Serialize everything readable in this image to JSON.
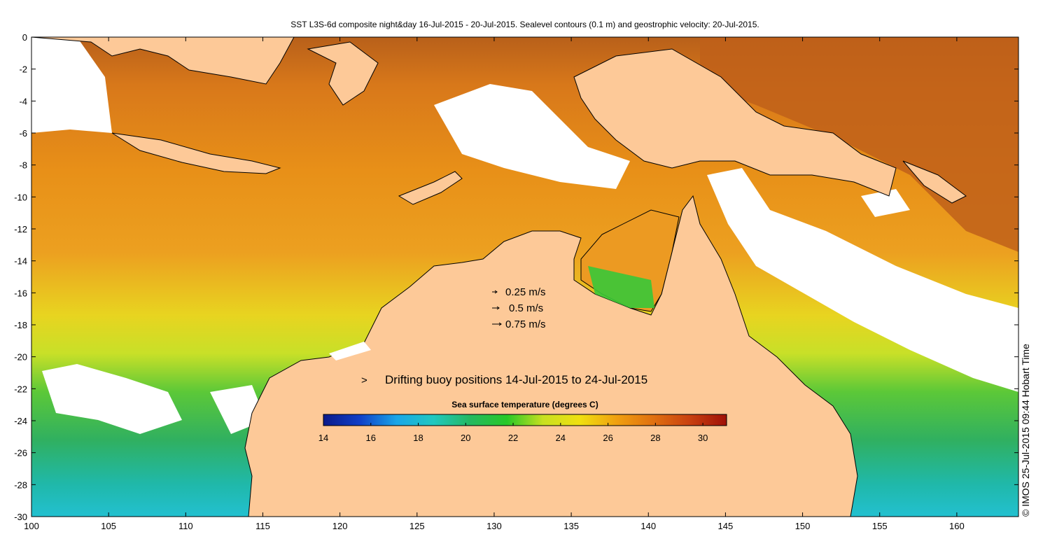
{
  "title": "SST L3S-6d composite night&day 16-Jul-2015 - 20-Jul-2015. Sealevel contours (0.1 m) and geostrophic velocity: 20-Jul-2015.",
  "axes": {
    "x_ticks": [
      "100",
      "105",
      "110",
      "115",
      "120",
      "125",
      "130",
      "135",
      "140",
      "145",
      "150",
      "155",
      "160"
    ],
    "x_values": [
      100,
      105,
      110,
      115,
      120,
      125,
      130,
      135,
      140,
      145,
      150,
      155,
      160
    ],
    "y_ticks": [
      "0",
      "-2",
      "-4",
      "-6",
      "-8",
      "-10",
      "-12",
      "-14",
      "-16",
      "-18",
      "-20",
      "-22",
      "-24",
      "-26",
      "-28",
      "-30"
    ],
    "y_values": [
      0,
      -2,
      -4,
      -6,
      -8,
      -10,
      -12,
      -14,
      -16,
      -18,
      -20,
      -22,
      -24,
      -26,
      -28,
      -30
    ],
    "xlim": [
      100,
      164
    ],
    "ylim": [
      -30,
      0
    ]
  },
  "velocity_legend": [
    {
      "label": "0.25 m/s",
      "speed": 0.25
    },
    {
      "label": "0.5 m/s",
      "speed": 0.5
    },
    {
      "label": "0.75 m/s",
      "speed": 0.75
    }
  ],
  "buoy_legend": {
    "marker": ">",
    "label": "Drifting buoy positions 14-Jul-2015 to 24-Jul-2015",
    "color": "#e040e0"
  },
  "colorbar": {
    "title": "Sea surface temperature (degrees C)",
    "range": [
      14,
      31
    ],
    "tick_labels": [
      "14",
      "16",
      "18",
      "20",
      "22",
      "24",
      "26",
      "28",
      "30"
    ],
    "tick_values": [
      14,
      16,
      18,
      20,
      22,
      24,
      26,
      28,
      30
    ],
    "colors": [
      "#0a1a8a",
      "#1040c8",
      "#1aa6e8",
      "#20c8c0",
      "#25b860",
      "#28c828",
      "#c8e020",
      "#f0e010",
      "#f0a010",
      "#e07010",
      "#c84010",
      "#a01008"
    ]
  },
  "credit": "© IMOS 25-Jul-2015 09:44 Hobart Time",
  "colors": {
    "land": "#fdc998",
    "coast": "#000000"
  }
}
